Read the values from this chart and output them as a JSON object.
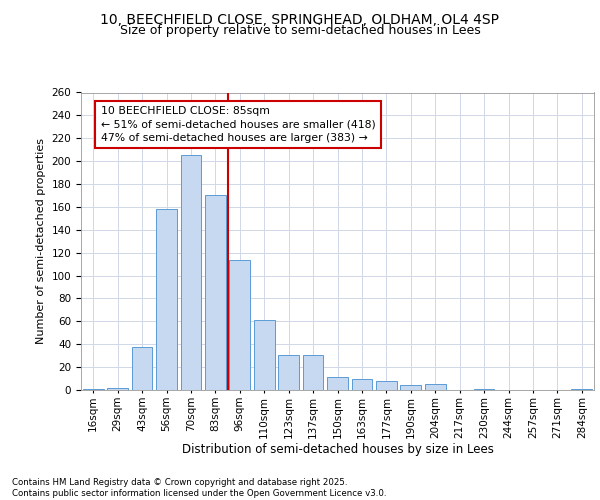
{
  "title_line1": "10, BEECHFIELD CLOSE, SPRINGHEAD, OLDHAM, OL4 4SP",
  "title_line2": "Size of property relative to semi-detached houses in Lees",
  "xlabel": "Distribution of semi-detached houses by size in Lees",
  "ylabel": "Number of semi-detached properties",
  "categories": [
    "16sqm",
    "29sqm",
    "43sqm",
    "56sqm",
    "70sqm",
    "83sqm",
    "96sqm",
    "110sqm",
    "123sqm",
    "137sqm",
    "150sqm",
    "163sqm",
    "177sqm",
    "190sqm",
    "204sqm",
    "217sqm",
    "230sqm",
    "244sqm",
    "257sqm",
    "271sqm",
    "284sqm"
  ],
  "values": [
    1,
    2,
    38,
    158,
    205,
    170,
    114,
    61,
    31,
    31,
    11,
    10,
    8,
    4,
    5,
    0,
    1,
    0,
    0,
    0,
    1
  ],
  "bar_color": "#c7d9f0",
  "bar_edge_color": "#5b9bd5",
  "vline_x": 5.5,
  "vline_color": "#cc0000",
  "annotation_text": "10 BEECHFIELD CLOSE: 85sqm\n← 51% of semi-detached houses are smaller (418)\n47% of semi-detached houses are larger (383) →",
  "annotation_box_color": "#ffffff",
  "annotation_box_edge": "#cc0000",
  "footer_text": "Contains HM Land Registry data © Crown copyright and database right 2025.\nContains public sector information licensed under the Open Government Licence v3.0.",
  "ylim": [
    0,
    260
  ],
  "yticks": [
    0,
    20,
    40,
    60,
    80,
    100,
    120,
    140,
    160,
    180,
    200,
    220,
    240,
    260
  ],
  "background_color": "#ffffff",
  "grid_color": "#d0d8e8",
  "title_fontsize": 10,
  "subtitle_fontsize": 9,
  "ylabel_fontsize": 8,
  "xlabel_fontsize": 8.5,
  "tick_fontsize": 7.5,
  "footer_fontsize": 6.2,
  "ann_fontsize": 7.8
}
